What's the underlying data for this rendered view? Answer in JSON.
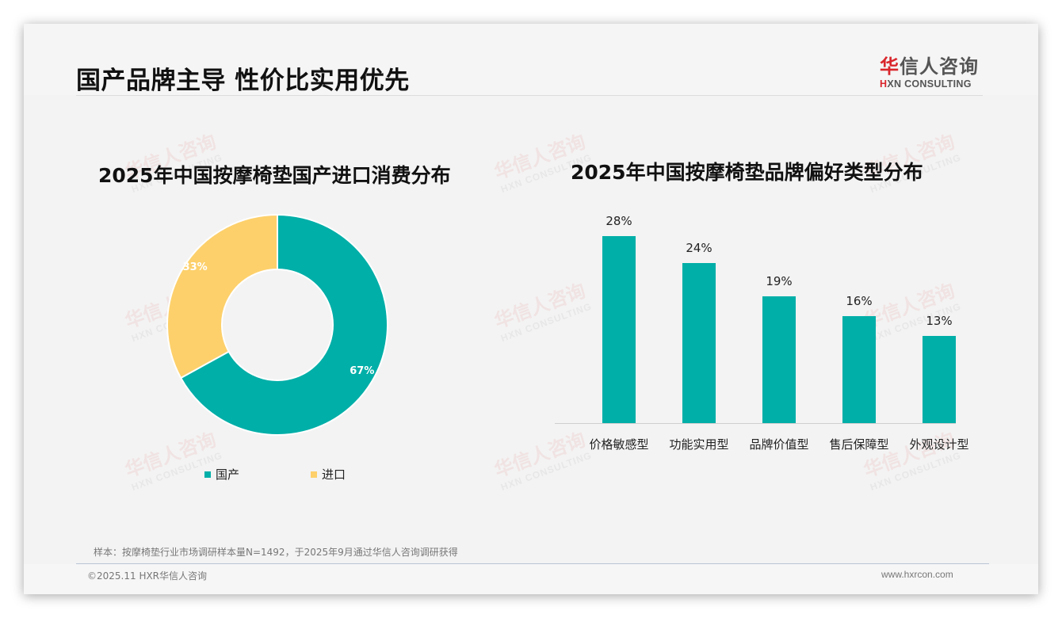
{
  "header": {
    "title": "国产品牌主导 性价比实用优先",
    "logo": {
      "cn_first": "华",
      "cn_rest": "信人咨询",
      "en_mark": "H",
      "en_rest": "XN CONSULTING"
    }
  },
  "watermark": {
    "cn": "华信人咨询",
    "en": "HXN CONSULTING"
  },
  "left_chart": {
    "title": "2025年中国按摩椅垫国产进口消费分布",
    "legend": [
      {
        "label": "国产",
        "color": "#00afa8"
      },
      {
        "label": "进口",
        "color": "#fdd06b"
      }
    ],
    "labels": [
      "67%",
      "33%"
    ]
  },
  "right_chart": {
    "title": "2025年中国按摩椅垫品牌偏好类型分布",
    "bars": [
      {
        "label": "价格敏感型",
        "value": 28,
        "display": "28%"
      },
      {
        "label": "功能实用型",
        "value": 24,
        "display": "24%"
      },
      {
        "label": "品牌价值型",
        "value": 19,
        "display": "19%"
      },
      {
        "label": "售后保障型",
        "value": 16,
        "display": "16%"
      },
      {
        "label": "外观设计型",
        "value": 13,
        "display": "13%"
      }
    ],
    "bar_color": "#00afa8"
  },
  "footer": {
    "source": "样本：按摩椅垫行业市场调研样本量N=1492，于2025年9月通过华信人咨询调研获得",
    "copyright": "©2025.11 HXR华信人咨询",
    "website": "www.hxrcon.com"
  },
  "chart_data": [
    {
      "type": "pie",
      "title": "2025年中国按摩椅垫国产进口消费分布",
      "categories": [
        "国产",
        "进口"
      ],
      "values": [
        67,
        33
      ],
      "unit": "%",
      "colors": [
        "#00afa8",
        "#fdd06b"
      ],
      "donut": true,
      "legend_position": "bottom"
    },
    {
      "type": "bar",
      "title": "2025年中国按摩椅垫品牌偏好类型分布",
      "categories": [
        "价格敏感型",
        "功能实用型",
        "品牌价值型",
        "售后保障型",
        "外观设计型"
      ],
      "values": [
        28,
        24,
        19,
        16,
        13
      ],
      "unit": "%",
      "xlabel": "",
      "ylabel": "",
      "ylim": [
        0,
        30
      ],
      "grid": false,
      "data_labels": true,
      "color": "#00afa8"
    }
  ]
}
